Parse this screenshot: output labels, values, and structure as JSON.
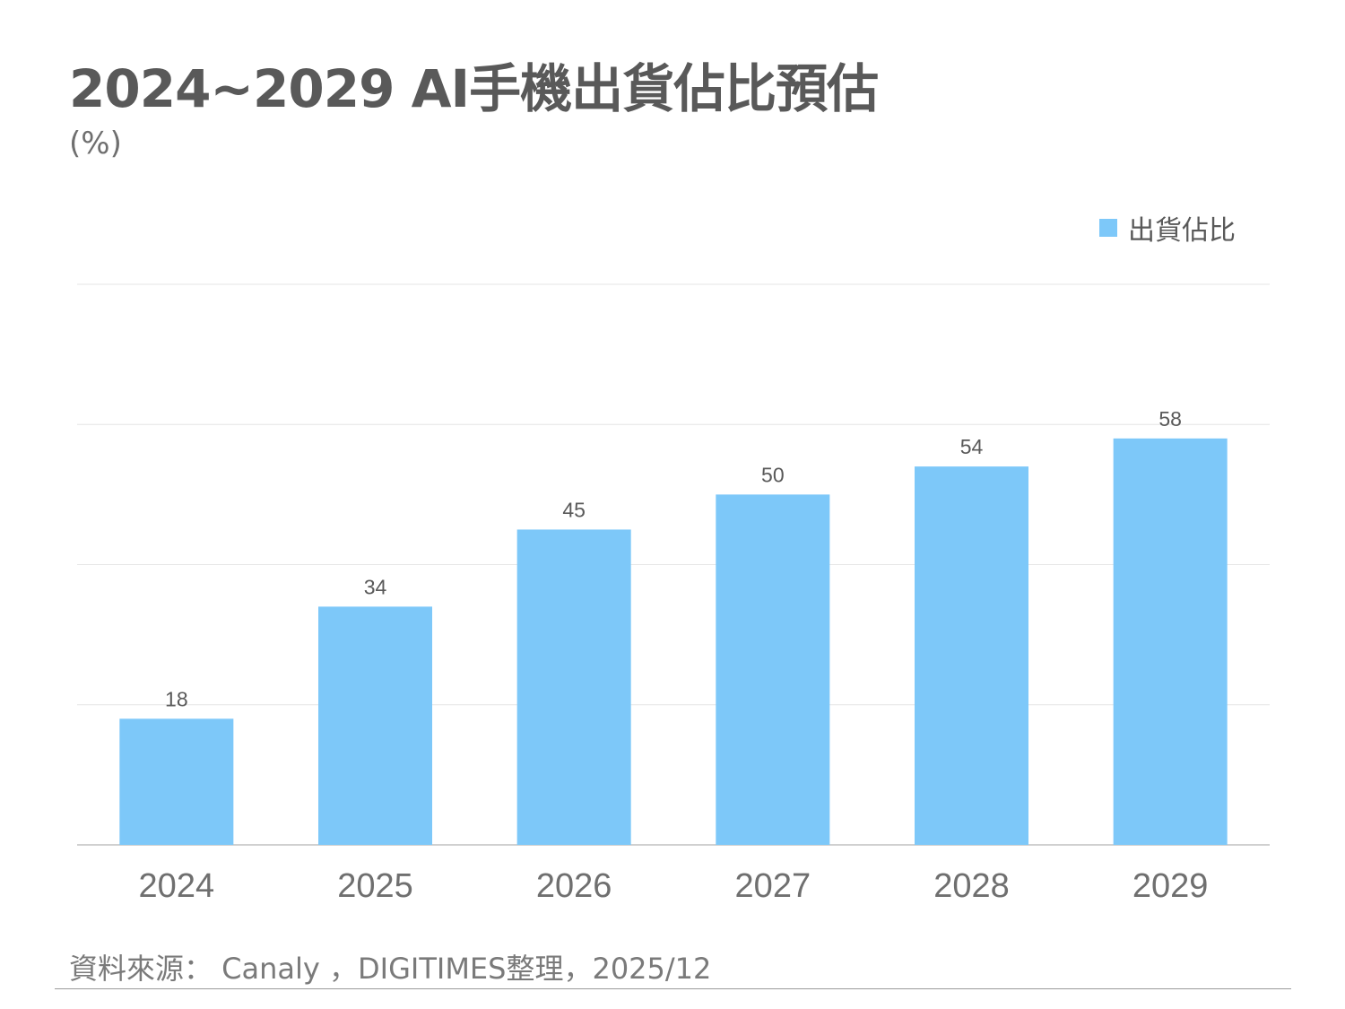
{
  "chart_data": {
    "type": "bar",
    "title": "2024~2029 AI手機出貨佔比預估",
    "unit_label": "(%)",
    "categories": [
      "2024",
      "2025",
      "2026",
      "2027",
      "2028",
      "2029"
    ],
    "series": [
      {
        "name": "出貨佔比",
        "values": [
          18,
          34,
          45,
          50,
          54,
          58
        ],
        "color": "#7dc8f9"
      }
    ],
    "ylim": [
      0,
      80
    ],
    "yticks": [
      0,
      20,
      40,
      60,
      80
    ],
    "ytick_labels_shown": false,
    "grid": true,
    "legend": "top-right",
    "data_labels": true
  },
  "footer": {
    "source": "資料來源： Canaly ，DIGITIMES整理，2025/12"
  }
}
